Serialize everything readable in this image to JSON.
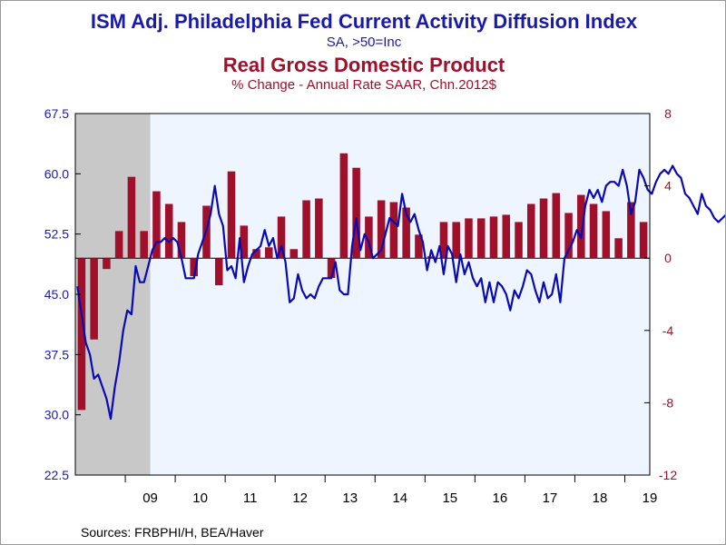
{
  "titles": {
    "main": "ISM Adj. Philadelphia Fed Current Activity Diffusion Index",
    "main_sub": "SA, >50=Inc",
    "secondary": "Real Gross Domestic Product",
    "secondary_sub": "% Change - Annual Rate     SAAR, Chn.2012$"
  },
  "source": "Sources:  FRBPHI/H, BEA/Haver",
  "colors": {
    "line": "#0a0ab4",
    "bars": "#a0102a",
    "plot_bg": "#eef5ff",
    "recession": "#c8c8c8",
    "left_axis": "#1a1aa8",
    "right_axis": "#a0102a"
  },
  "chart_data": {
    "type": "bar+line",
    "start": "2008-01",
    "end": "2019-06",
    "recession": {
      "start": "2008-01",
      "end": "2009-06"
    },
    "left_axis": {
      "min": 22.5,
      "max": 67.5,
      "ticks": [
        22.5,
        30.0,
        37.5,
        45.0,
        52.5,
        60.0,
        67.5
      ],
      "tick_labels": [
        "22.5",
        "30.0",
        "37.5",
        "45.0",
        "52.5",
        "60.0",
        "67.5"
      ]
    },
    "right_axis": {
      "min": -12,
      "max": 8,
      "ticks": [
        -12,
        -8,
        -4,
        0,
        4,
        8
      ],
      "tick_labels": [
        "-12",
        "-8",
        "-4",
        "0",
        "4",
        "8"
      ]
    },
    "x_labels": [
      {
        "label": "09",
        "year": 2009
      },
      {
        "label": "10",
        "year": 2010
      },
      {
        "label": "11",
        "year": 2011
      },
      {
        "label": "12",
        "year": 2012
      },
      {
        "label": "13",
        "year": 2013
      },
      {
        "label": "14",
        "year": 2014
      },
      {
        "label": "15",
        "year": 2015
      },
      {
        "label": "16",
        "year": 2016
      },
      {
        "label": "17",
        "year": 2017
      },
      {
        "label": "18",
        "year": 2018
      },
      {
        "label": "19",
        "year": 2019
      }
    ],
    "series": [
      {
        "name": "Real Gross Domestic Product",
        "type": "bar",
        "axis": "right",
        "x": [
          "2008Q1",
          "2008Q2",
          "2008Q3",
          "2008Q4",
          "2009Q1",
          "2009Q2",
          "2009Q3",
          "2009Q4",
          "2010Q1",
          "2010Q2",
          "2010Q3",
          "2010Q4",
          "2011Q1",
          "2011Q2",
          "2011Q3",
          "2011Q4",
          "2012Q1",
          "2012Q2",
          "2012Q3",
          "2012Q4",
          "2013Q1",
          "2013Q2",
          "2013Q3",
          "2013Q4",
          "2014Q1",
          "2014Q2",
          "2014Q3",
          "2014Q4",
          "2015Q1",
          "2015Q2",
          "2015Q3",
          "2015Q4",
          "2016Q1",
          "2016Q2",
          "2016Q3",
          "2016Q4",
          "2017Q1",
          "2017Q2",
          "2017Q3",
          "2017Q4",
          "2018Q1",
          "2018Q2",
          "2018Q3",
          "2018Q4",
          "2019Q1",
          "2019Q2"
        ],
        "values": [
          -8.4,
          -4.5,
          -0.6,
          1.5,
          4.5,
          1.5,
          3.7,
          3.0,
          2.0,
          -1.0,
          2.9,
          -1.5,
          4.8,
          1.8,
          0.5,
          0.6,
          2.3,
          0.5,
          3.2,
          3.3,
          -1.1,
          5.8,
          5.0,
          2.3,
          3.2,
          3.1,
          2.8,
          1.3,
          0.1,
          2.0,
          2.0,
          2.2,
          2.2,
          2.3,
          2.4,
          2.0,
          3.0,
          3.3,
          3.6,
          2.5,
          3.5,
          3.0,
          2.6,
          1.1,
          3.1,
          2.0
        ]
      },
      {
        "name": "ISM Adj. Philadelphia Fed Current Activity Diffusion Index",
        "type": "line",
        "axis": "left",
        "start": "2008-01",
        "frequency": "monthly",
        "values": [
          46.0,
          42.5,
          39.0,
          37.5,
          34.5,
          35.0,
          33.5,
          32.0,
          29.5,
          33.5,
          36.5,
          40.5,
          43.0,
          42.5,
          48.5,
          46.5,
          46.5,
          48.5,
          50.5,
          51.5,
          51.5,
          52.0,
          51.5,
          52.0,
          51.5,
          49.5,
          47.0,
          47.0,
          47.0,
          50.0,
          51.5,
          53.0,
          55.0,
          58.5,
          55.0,
          53.5,
          48.0,
          48.5,
          47.0,
          52.0,
          46.5,
          48.5,
          50.0,
          50.5,
          51.0,
          53.0,
          51.0,
          52.0,
          49.5,
          51.0,
          49.0,
          44.0,
          44.5,
          47.5,
          45.5,
          44.5,
          45.0,
          44.5,
          46.0,
          47.0,
          47.0,
          47.0,
          49.0,
          45.5,
          45.0,
          45.0,
          51.0,
          54.5,
          50.5,
          52.5,
          51.5,
          49.5,
          50.0,
          50.5,
          52.5,
          54.5,
          54.0,
          53.5,
          57.5,
          55.0,
          54.0,
          55.0,
          53.0,
          51.5,
          48.0,
          50.5,
          49.0,
          51.0,
          47.5,
          51.0,
          50.0,
          46.5,
          50.0,
          47.5,
          49.0,
          47.0,
          46.0,
          47.0,
          44.0,
          46.5,
          44.0,
          46.5,
          46.0,
          45.0,
          43.0,
          45.5,
          44.5,
          46.0,
          48.0,
          47.5,
          45.5,
          44.0,
          46.5,
          44.5,
          45.0,
          47.5,
          44.0,
          49.5,
          50.5,
          51.5,
          53.0,
          52.0,
          56.0,
          58.0,
          57.0,
          58.0,
          56.5,
          58.5,
          59.0,
          59.0,
          58.5,
          60.5,
          58.5,
          55.0,
          56.5,
          60.5,
          59.5,
          58.0,
          57.5,
          59.0,
          60.0,
          60.5,
          60.0,
          61.0,
          60.0,
          59.5,
          57.5,
          57.0,
          56.0,
          55.0,
          57.5,
          56.0,
          55.5,
          54.5,
          54.0,
          54.5,
          55.0,
          52.0,
          54.5,
          55.0,
          55.0,
          58.0,
          56.0
        ]
      }
    ]
  }
}
